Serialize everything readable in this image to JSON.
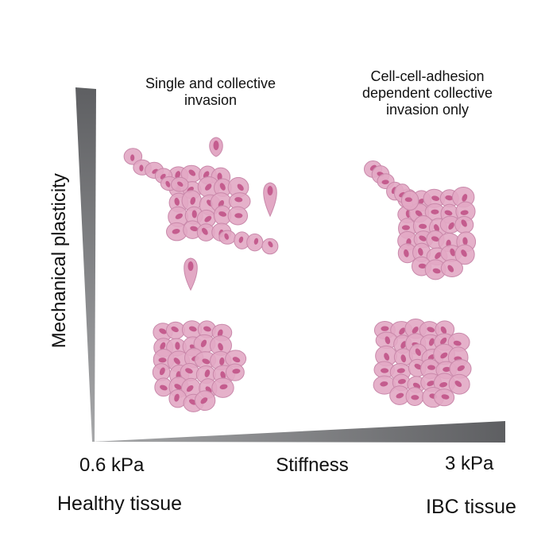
{
  "labels": {
    "top_left": "Single and collective\ninvasion",
    "top_right": "Cell-cell-adhesion\ndependent collective\ninvasion only",
    "y_axis": "Mechanical plasticity",
    "x_axis": "Stiffness",
    "x_low": "0.6 kPa",
    "x_high": "3 kPa",
    "tissue_low": "Healthy tissue",
    "tissue_high": "IBC tissue"
  },
  "colors": {
    "cell_fill": "#e2a8c4",
    "cell_stroke": "#c988aa",
    "nucleus": "#c45c8e",
    "wedge_dark": "#5e5f62",
    "wedge_light": "#a7a8aa"
  }
}
